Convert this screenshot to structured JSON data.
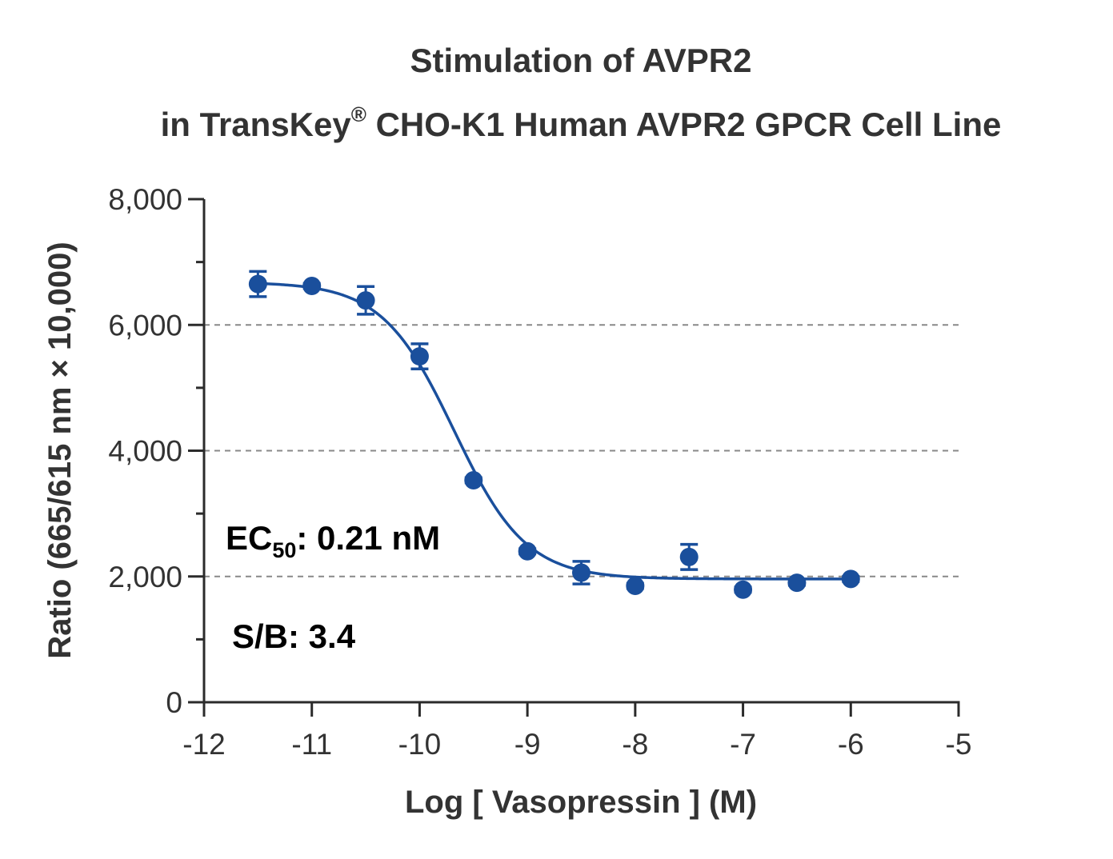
{
  "title": {
    "line1": "Stimulation of  AVPR2",
    "line2_pre": "in TransKey",
    "line2_sup": "®",
    "line2_post": " CHO-K1 Human AVPR2 GPCR Cell Line"
  },
  "annotations": {
    "ec50_prefix": "EC",
    "ec50_sub": "50",
    "ec50_value": ": 0.21 nM",
    "sb": "S/B: 3.4"
  },
  "colors": {
    "series": "#1a4f9c",
    "axis": "#2b2b2b",
    "grid": "#888888",
    "text": "#333333"
  },
  "chart_data": {
    "type": "scatter",
    "xlabel": "Log [ Vasopressin ]  (M)",
    "ylabel": "Ratio (665/615 nm × 10,000)",
    "xlim": [
      -12,
      -5
    ],
    "ylim": [
      0,
      8000
    ],
    "x_ticks": [
      -12,
      -11,
      -10,
      -9,
      -8,
      -7,
      -6,
      -5
    ],
    "x_tick_labels": [
      "-12",
      "-11",
      "-10",
      "-9",
      "-8",
      "-7",
      "-6",
      "-5"
    ],
    "y_ticks": [
      0,
      2000,
      4000,
      6000,
      8000
    ],
    "y_tick_labels": [
      "0",
      "2,000",
      "4,000",
      "6,000",
      "8,000"
    ],
    "y_minor_ticks": [
      1000,
      3000,
      5000,
      7000
    ],
    "grid": {
      "y_dashed": [
        2000,
        4000,
        6000
      ]
    },
    "series": [
      {
        "x": [
          -11.5,
          -11,
          -10.5,
          -10,
          -9.5,
          -9,
          -8.5,
          -8,
          -7.5,
          -7,
          -6.5,
          -6
        ],
        "y": [
          6650,
          6620,
          6390,
          5500,
          3530,
          2400,
          2060,
          1850,
          2310,
          1790,
          1900,
          1960
        ],
        "err": [
          200,
          40,
          220,
          200,
          40,
          40,
          180,
          40,
          200,
          40,
          40,
          40
        ]
      }
    ],
    "fit": {
      "model": "4PL",
      "top": 6680,
      "bottom": 1960,
      "log_ec50": -9.68,
      "hill": -1.3
    }
  }
}
